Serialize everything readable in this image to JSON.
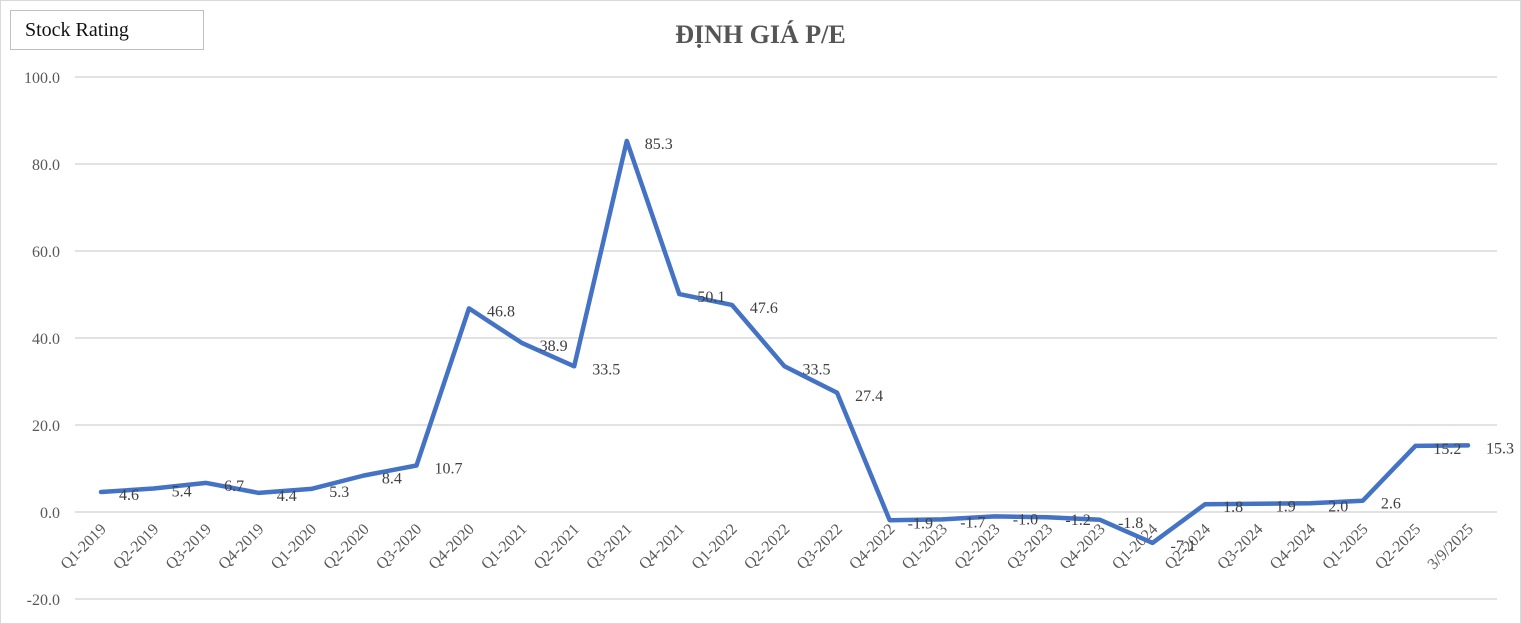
{
  "badge": {
    "label": "Stock Rating"
  },
  "chart_data": {
    "type": "line",
    "title": "ĐỊNH GIÁ P/E",
    "xlabel": "",
    "ylabel": "",
    "ylim": [
      -20,
      100
    ],
    "yticks": [
      "100.0",
      "80.0",
      "60.0",
      "40.0",
      "20.0",
      "0.0",
      "-20.0"
    ],
    "grid": true,
    "legend": "none",
    "categories": [
      "Q1-2019",
      "Q2-2019",
      "Q3-2019",
      "Q4-2019",
      "Q1-2020",
      "Q2-2020",
      "Q3-2020",
      "Q4-2020",
      "Q1-2021",
      "Q2-2021",
      "Q3-2021",
      "Q4-2021",
      "Q1-2022",
      "Q2-2022",
      "Q3-2022",
      "Q4-2022",
      "Q1-2023",
      "Q2-2023",
      "Q3-2023",
      "Q4-2023",
      "Q1-2024",
      "Q2-2024",
      "Q3-2024",
      "Q4-2024",
      "Q1-2025",
      "Q2-2025",
      "3/9/2025"
    ],
    "series": [
      {
        "name": "P/E",
        "color": "#4472c4",
        "values": [
          4.6,
          5.4,
          6.7,
          4.4,
          5.3,
          8.4,
          10.7,
          46.8,
          38.9,
          33.5,
          85.3,
          50.1,
          47.6,
          33.5,
          27.4,
          -1.9,
          -1.7,
          -1.0,
          -1.2,
          -1.8,
          -7.1,
          1.8,
          1.9,
          2.0,
          2.6,
          15.2,
          15.3
        ]
      }
    ]
  }
}
